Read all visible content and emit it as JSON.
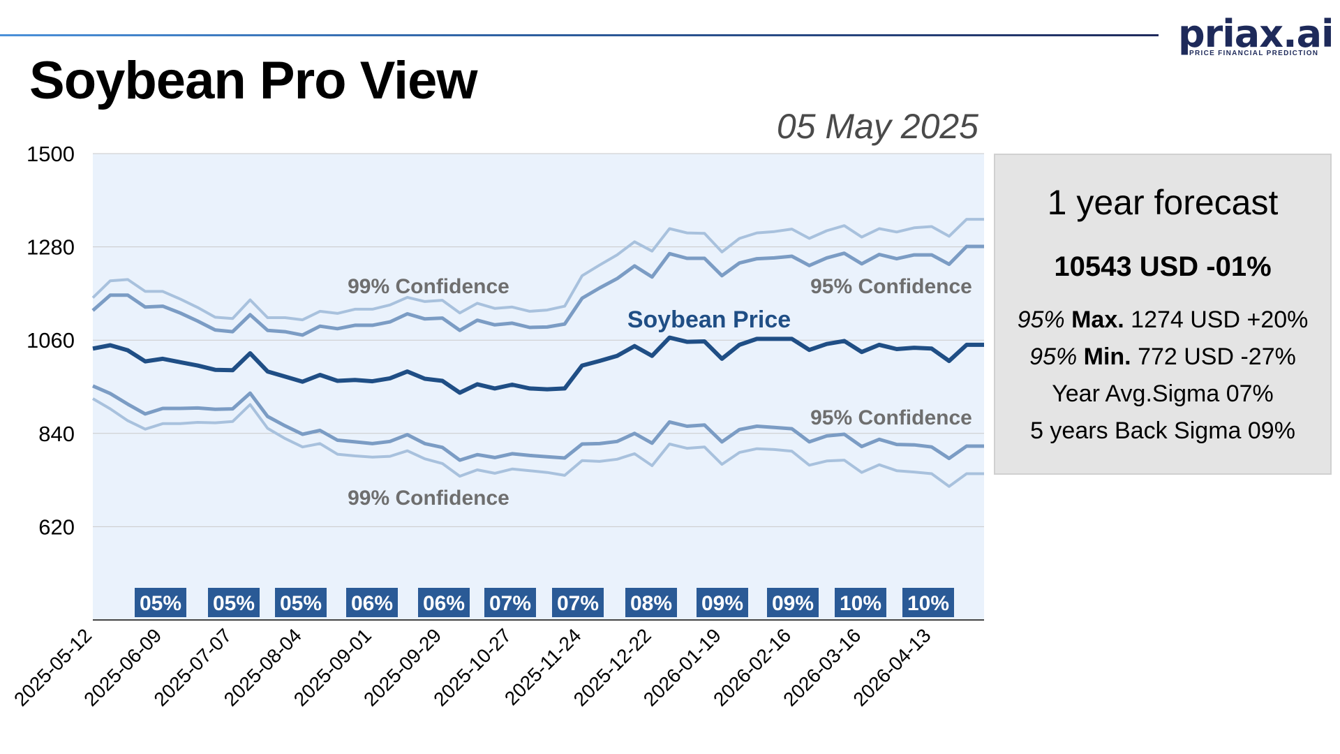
{
  "header": {
    "title": "Soybean Pro View",
    "date": "05 May 2025",
    "logo_text": "priax.ai",
    "logo_subtitle": "PRICE FINANCIAL PREDICTION"
  },
  "panel": {
    "heading": "1 year forecast",
    "value": "10543 USD -01%",
    "max": {
      "conf": "95%",
      "label": "Max.",
      "value": "1274 USD +20%"
    },
    "min": {
      "conf": "95%",
      "label": "Min.",
      "value": "772 USD -27%"
    },
    "year_avg": "Year Avg.Sigma 07%",
    "back_sigma": "5 years Back Sigma 09%"
  },
  "colors": {
    "price": "#1f4e85",
    "band95": "#7b9cc4",
    "band99": "#a8c1dd",
    "plot_bg": "#eaf2fc",
    "badge": "#2a5a96",
    "label_gray": "#6e6e6e"
  },
  "chart_data": {
    "type": "line",
    "title": "",
    "xlabel": "",
    "ylabel": "",
    "ylim": [
      400,
      1500
    ],
    "yticks": [
      620,
      840,
      1060,
      1280,
      1500
    ],
    "x_tick_labels": [
      "2025-05-12",
      "2025-06-09",
      "2025-07-07",
      "2025-08-04",
      "2025-09-01",
      "2025-09-29",
      "2025-10-27",
      "2025-11-24",
      "2025-12-22",
      "2026-01-19",
      "2026-02-16",
      "2026-03-16",
      "2026-04-13"
    ],
    "grid": true,
    "series": [
      {
        "name": "99% Confidence",
        "role": "upper99",
        "values": [
          1160,
          1200,
          1203,
          1175,
          1175,
          1157,
          1137,
          1114,
          1111,
          1155,
          1113,
          1113,
          1108,
          1128,
          1123,
          1133,
          1133,
          1143,
          1161,
          1151,
          1154,
          1124,
          1147,
          1135,
          1138,
          1128,
          1131,
          1140,
          1212,
          1237,
          1261,
          1292,
          1270,
          1323,
          1313,
          1312,
          1268,
          1300,
          1313,
          1316,
          1322,
          1300,
          1318,
          1330,
          1303,
          1323,
          1315,
          1325,
          1328,
          1305,
          1345,
          1345
        ]
      },
      {
        "name": "95% Confidence",
        "role": "upper95",
        "values": [
          1130,
          1166,
          1166,
          1138,
          1140,
          1124,
          1105,
          1084,
          1080,
          1120,
          1083,
          1080,
          1072,
          1093,
          1087,
          1095,
          1095,
          1103,
          1122,
          1110,
          1112,
          1083,
          1107,
          1096,
          1100,
          1090,
          1091,
          1098,
          1159,
          1183,
          1205,
          1235,
          1209,
          1264,
          1253,
          1253,
          1212,
          1242,
          1252,
          1254,
          1258,
          1236,
          1254,
          1265,
          1240,
          1262,
          1252,
          1261,
          1261,
          1239,
          1281,
          1281
        ]
      },
      {
        "name": "Soybean Price",
        "role": "price",
        "values": [
          1040,
          1048,
          1036,
          1010,
          1016,
          1008,
          1000,
          990,
          989,
          1029,
          986,
          974,
          962,
          978,
          964,
          966,
          963,
          970,
          986,
          969,
          964,
          936,
          956,
          946,
          955,
          946,
          944,
          946,
          1000,
          1011,
          1023,
          1046,
          1023,
          1066,
          1056,
          1057,
          1016,
          1049,
          1063,
          1063,
          1063,
          1037,
          1051,
          1058,
          1032,
          1049,
          1039,
          1042,
          1040,
          1011,
          1049,
          1049
        ]
      },
      {
        "name": "95% Confidence",
        "role": "lower95",
        "values": [
          952,
          934,
          909,
          886,
          899,
          899,
          900,
          897,
          898,
          935,
          880,
          858,
          838,
          847,
          824,
          820,
          816,
          821,
          837,
          816,
          807,
          777,
          790,
          783,
          792,
          788,
          785,
          782,
          815,
          816,
          821,
          840,
          817,
          867,
          857,
          860,
          820,
          849,
          857,
          854,
          851,
          820,
          834,
          838,
          809,
          826,
          814,
          813,
          808,
          781,
          810,
          810
        ]
      },
      {
        "name": "99% Confidence",
        "role": "lower99",
        "values": [
          922,
          898,
          870,
          850,
          863,
          863,
          866,
          865,
          868,
          908,
          852,
          828,
          808,
          816,
          791,
          787,
          784,
          786,
          799,
          780,
          769,
          739,
          754,
          746,
          756,
          752,
          748,
          741,
          776,
          774,
          779,
          792,
          764,
          815,
          805,
          808,
          767,
          795,
          804,
          802,
          798,
          765,
          775,
          777,
          748,
          766,
          752,
          749,
          745,
          715,
          745,
          745
        ]
      }
    ],
    "annotations": [
      "99% Confidence",
      "95% Confidence",
      "Soybean Price",
      "95% Confidence",
      "99% Confidence"
    ],
    "sigma_labels": [
      "05%",
      "05%",
      "05%",
      "06%",
      "06%",
      "07%",
      "07%",
      "08%",
      "09%",
      "09%",
      "10%",
      "10%"
    ]
  }
}
